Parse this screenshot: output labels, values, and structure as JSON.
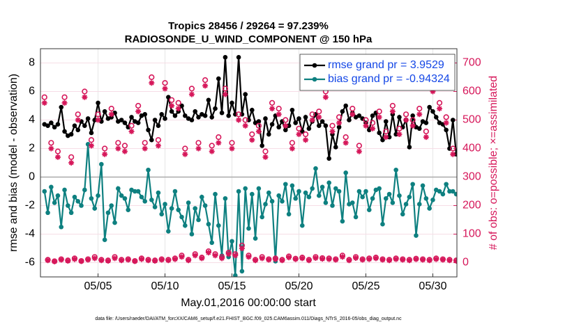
{
  "chart_data": {
    "type": "line",
    "title": "Tropics 28456 / 29264 = 97.239%",
    "subtitle": "RADIOSONDE_U_WIND_COMPONENT @ 150 hPa",
    "x_label": "May.01,2016 00:00:00 start",
    "y_label": "rmse and bias (model - observation)",
    "y2_label": "# of obs: o=possible; ×=assimilated",
    "footnote": "data file: /Users/raeder/DAI/ATM_forcXX/CAM6_setup/f.e21.FHIST_BGC.f09_025.CAM6assim.011/Diags_NTrS_2016-05/obs_diag_output.nc",
    "xlim": [
      -0.3,
      30.8
    ],
    "xticks": [
      {
        "value": 4,
        "label": "05/05"
      },
      {
        "value": 9,
        "label": "05/10"
      },
      {
        "value": 14,
        "label": "05/15"
      },
      {
        "value": 19,
        "label": "05/20"
      },
      {
        "value": 24,
        "label": "05/25"
      },
      {
        "value": 29,
        "label": "05/30"
      }
    ],
    "ylim": [
      -7,
      9
    ],
    "yticks": [
      -6,
      -4,
      -2,
      0,
      2,
      4,
      6,
      8
    ],
    "y2lim": [
      -50,
      750
    ],
    "y2ticks": [
      0,
      100,
      200,
      300,
      400,
      500,
      600,
      700
    ],
    "grid": true,
    "legend": "upper right",
    "x": [
      0,
      0.25,
      0.5,
      0.75,
      1,
      1.25,
      1.5,
      1.75,
      2,
      2.25,
      2.5,
      2.75,
      3,
      3.25,
      3.5,
      3.75,
      4,
      4.25,
      4.5,
      4.75,
      5,
      5.25,
      5.5,
      5.75,
      6,
      6.25,
      6.5,
      6.75,
      7,
      7.25,
      7.5,
      7.75,
      8,
      8.25,
      8.5,
      8.75,
      9,
      9.25,
      9.5,
      9.75,
      10,
      10.25,
      10.5,
      10.75,
      11,
      11.25,
      11.5,
      11.75,
      12,
      12.25,
      12.5,
      12.75,
      13,
      13.25,
      13.5,
      13.75,
      14,
      14.25,
      14.5,
      14.75,
      15,
      15.25,
      15.5,
      15.75,
      16,
      16.25,
      16.5,
      16.75,
      17,
      17.25,
      17.5,
      17.75,
      18,
      18.25,
      18.5,
      18.75,
      19,
      19.25,
      19.5,
      19.75,
      20,
      20.25,
      20.5,
      20.75,
      21,
      21.25,
      21.5,
      21.75,
      22,
      22.25,
      22.5,
      22.75,
      23,
      23.25,
      23.5,
      23.75,
      24,
      24.25,
      24.5,
      24.75,
      25,
      25.25,
      25.5,
      25.75,
      26,
      26.25,
      26.5,
      26.75,
      27,
      27.25,
      27.5,
      27.75,
      28,
      28.25,
      28.5,
      28.75,
      29,
      29.25,
      29.5,
      29.75,
      30,
      30.25,
      30.5,
      30.75
    ],
    "series": [
      {
        "name": "rmse grand pr = 3.9529",
        "color": "#000000",
        "marker": "filled",
        "line": true,
        "values": [
          3.7,
          3.6,
          3.8,
          3.5,
          3.7,
          4.9,
          3.2,
          2.9,
          3.0,
          3.6,
          3.3,
          3.9,
          3.6,
          4.1,
          3.1,
          4.0,
          5.2,
          3.9,
          4.6,
          4.1,
          4.2,
          4.5,
          3.9,
          4.0,
          3.8,
          3.5,
          4.2,
          3.9,
          3.8,
          4.3,
          4.4,
          3.3,
          2.6,
          4.0,
          3.6,
          4.4,
          4.1,
          5.6,
          4.6,
          4.3,
          4.6,
          5.0,
          4.3,
          4.1,
          4.0,
          4.6,
          4.2,
          4.4,
          4.3,
          5.4,
          4.2,
          4.8,
          6.9,
          4.5,
          8.4,
          4.3,
          5.2,
          4.4,
          8.4,
          4.4,
          5.8,
          4.0,
          4.7,
          3.8,
          3.9,
          2.2,
          4.1,
          3.0,
          3.7,
          4.3,
          3.5,
          3.9,
          3.3,
          3.6,
          4.7,
          3.8,
          4.1,
          3.2,
          4.2,
          3.4,
          3.9,
          4.4,
          3.6,
          3.9,
          3.6,
          1.3,
          3.0,
          2.1,
          3.5,
          4.6,
          5.0,
          4.0,
          4.5,
          4.2,
          4.3,
          4.1,
          3.8,
          3.3,
          4.3,
          4.5,
          3.1,
          2.6,
          3.9,
          2.8,
          4.4,
          3.0,
          4.2,
          3.5,
          4.0,
          2.1,
          4.3,
          3.5,
          3.4,
          3.9,
          3.8,
          4.9,
          4.6,
          4.2,
          3.8,
          3.7,
          3.3,
          2.0,
          4.0,
          1.6
        ]
      },
      {
        "name": "bias grand pr = -0.94324",
        "color": "#0e8080",
        "marker": "filled",
        "line": true,
        "values": [
          -1.0,
          -2.5,
          -0.7,
          -1.8,
          -1.3,
          -3.5,
          -0.9,
          -2.0,
          -2.5,
          -1.4,
          -1.7,
          -2.0,
          -0.9,
          2.3,
          -1.5,
          -2.2,
          -1.3,
          0.9,
          -4.4,
          -2.5,
          -2.0,
          -3.2,
          -0.8,
          -1.3,
          -1.5,
          -2.3,
          -0.9,
          -1.0,
          -1.0,
          -1.4,
          -1.7,
          0.5,
          -1.6,
          -2.1,
          -1.1,
          -2.6,
          -1.9,
          -3.8,
          -2.2,
          -1.0,
          -2.3,
          -2.8,
          -3.4,
          -1.8,
          -4.0,
          -2.2,
          -3.0,
          -1.4,
          -2.0,
          -3.3,
          -4.6,
          -1.2,
          -3.4,
          -5.5,
          -1.5,
          -5.6,
          -4.5,
          -6.9,
          -1.0,
          -6.6,
          -0.8,
          -3.6,
          -1.2,
          -4.3,
          -0.8,
          -2.8,
          -1.9,
          -1.1,
          -1.7,
          -5.9,
          -1.3,
          -1.7,
          -0.5,
          -2.6,
          -0.6,
          -1.5,
          -1.0,
          -3.4,
          -1.1,
          -1.4,
          -0.8,
          0.6,
          -1.3,
          -0.7,
          -1.8,
          -0.4,
          -2.0,
          -0.8,
          -1.0,
          -3.1,
          0.3,
          -1.9,
          -1.8,
          -2.8,
          -1.0,
          -1.4,
          -1.0,
          -2.3,
          -1.5,
          -0.9,
          -0.8,
          -3.3,
          -1.5,
          -1.2,
          -1.8,
          0.5,
          -1.3,
          -2.6,
          -1.9,
          -1.4,
          -0.5,
          -4.1,
          -1.9,
          -0.6,
          -1.5,
          -2.2,
          -1.6,
          -0.9,
          -1.0,
          -1.2,
          -0.5,
          -1.0,
          -1.0,
          -1.2
        ]
      },
      {
        "color": "#d6175a",
        "marker": "open",
        "line": false,
        "axis": "y2",
        "values": [
          580,
          10,
          420,
          5,
          390,
          12,
          580,
          8,
          370,
          15,
          520,
          6,
          600,
          12,
          430,
          20,
          520,
          10,
          400,
          8,
          540,
          20,
          420,
          10,
          410,
          12,
          480,
          6,
          550,
          15,
          420,
          10,
          650,
          8,
          430,
          12,
          630,
          10,
          570,
          15,
          560,
          25,
          400,
          10,
          610,
          30,
          420,
          18,
          640,
          40,
          410,
          30,
          440,
          20,
          610,
          35,
          420,
          30,
          520,
          60,
          500,
          25,
          450,
          10,
          480,
          20,
          390,
          12,
          560,
          15,
          540,
          10,
          500,
          22,
          420,
          14,
          470,
          18,
          450,
          10,
          520,
          20,
          530,
          16,
          600,
          15,
          480,
          12,
          510,
          25,
          440,
          10,
          540,
          20,
          410,
          12,
          500,
          15,
          490,
          18,
          530,
          12,
          460,
          10,
          550,
          15,
          470,
          12,
          520,
          10,
          500,
          14,
          540,
          12,
          460,
          10,
          620,
          15,
          560,
          12,
          510,
          10,
          400,
          8
        ]
      },
      {
        "color": "#d6175a",
        "marker": "asterisk",
        "line": false,
        "axis": "y2",
        "values": [
          560,
          8,
          400,
          4,
          370,
          10,
          560,
          6,
          350,
          12,
          500,
          5,
          580,
          10,
          410,
          15,
          500,
          8,
          380,
          6,
          520,
          15,
          400,
          8,
          390,
          10,
          460,
          5,
          530,
          12,
          400,
          8,
          630,
          6,
          410,
          10,
          610,
          8,
          550,
          12,
          540,
          20,
          380,
          8,
          590,
          25,
          400,
          15,
          620,
          35,
          390,
          25,
          420,
          15,
          590,
          30,
          400,
          25,
          500,
          50,
          480,
          20,
          430,
          8,
          460,
          15,
          370,
          10,
          540,
          12,
          520,
          8,
          480,
          18,
          400,
          12,
          450,
          15,
          430,
          8,
          500,
          16,
          510,
          13,
          580,
          12,
          460,
          10,
          490,
          20,
          420,
          8,
          520,
          16,
          390,
          10,
          480,
          12,
          470,
          15,
          510,
          10,
          440,
          8,
          530,
          12,
          450,
          10,
          500,
          8,
          480,
          12,
          520,
          10,
          440,
          8,
          600,
          12,
          540,
          10,
          490,
          8,
          380,
          6
        ]
      }
    ]
  }
}
